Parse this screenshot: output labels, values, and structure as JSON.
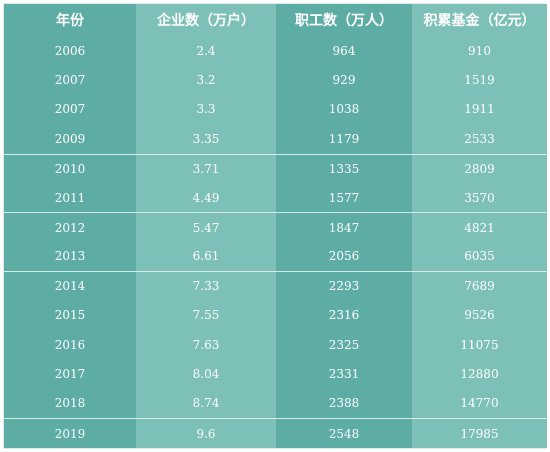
{
  "columns": [
    "年份",
    "企业数（万户）",
    "职工数（万人）",
    "积累基金（亿元）"
  ],
  "rows": [
    [
      "2006",
      "2.4",
      "964",
      "910"
    ],
    [
      "2007",
      "3.2",
      "929",
      "1519"
    ],
    [
      "2007",
      "3.3",
      "1038",
      "1911"
    ],
    [
      "2009",
      "3.35",
      "1179",
      "2533"
    ],
    [
      "2010",
      "3.71",
      "1335",
      "2809"
    ],
    [
      "2011",
      "4.49",
      "1577",
      "3570"
    ],
    [
      "2012",
      "5.47",
      "1847",
      "4821"
    ],
    [
      "2013",
      "6.61",
      "2056",
      "6035"
    ],
    [
      "2014",
      "7.33",
      "2293",
      "7689"
    ],
    [
      "2015",
      "7.55",
      "2316",
      "9526"
    ],
    [
      "2016",
      "7.63",
      "2325",
      "11075"
    ],
    [
      "2017",
      "8.04",
      "2331",
      "12880"
    ],
    [
      "2018",
      "8.74",
      "2388",
      "14770"
    ],
    [
      "2019",
      "9.6",
      "2548",
      "17985"
    ]
  ],
  "colors": {
    "dark_column": "#5eada5",
    "light_column": "#7cc0b8",
    "text": "#ffffff"
  }
}
